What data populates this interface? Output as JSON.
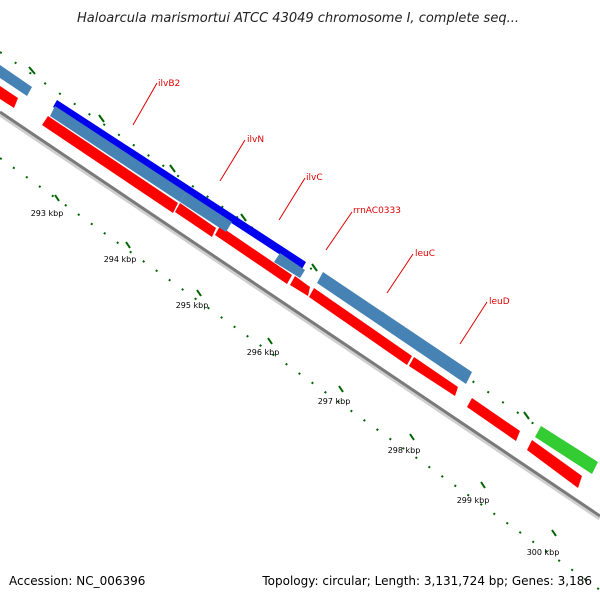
{
  "title": "Haloarcula marismortui ATCC 43049 chromosome I, complete seq...",
  "footer": {
    "accession": "Accession: NC_006396",
    "summary": "Topology: circular; Length: 3,131,724 bp; Genes: 3,186"
  },
  "colors": {
    "backbone": "#8c8c8c",
    "cds_red": "#ff0000",
    "gene_steelblue": "#4682b4",
    "gene_blue": "#0000ff",
    "gene_green": "#33cc33",
    "label_red": "#e00000",
    "tick_green": "#006400"
  },
  "kbp_labels": [
    "293 kbp",
    "294 kbp",
    "295 kbp",
    "296 kbp",
    "297 kbp",
    "298 kbp",
    "299 kbp",
    "300 kbp"
  ],
  "gene_labels": [
    "ilvB2",
    "ilvN",
    "ilvC",
    "rrnAC0333",
    "leuC",
    "leuD"
  ]
}
